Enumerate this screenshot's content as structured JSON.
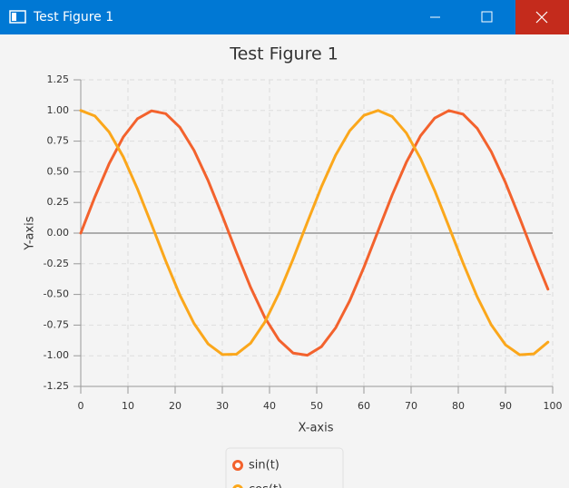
{
  "window": {
    "title": "Test Figure 1"
  },
  "chart_data": {
    "type": "line",
    "title": "Test Figure 1",
    "x_label": "X-axis",
    "y_label": "Y-axis",
    "x": [
      0,
      3,
      6,
      9,
      12,
      15,
      18,
      21,
      24,
      27,
      30,
      33,
      36,
      39,
      42,
      45,
      48,
      51,
      54,
      57,
      60,
      63,
      66,
      69,
      72,
      75,
      78,
      81,
      84,
      87,
      90,
      93,
      96,
      99
    ],
    "series": [
      {
        "name": "sin(t)",
        "color": "#f3622d",
        "values": [
          0,
          0.296,
          0.565,
          0.783,
          0.932,
          0.997,
          0.974,
          0.863,
          0.675,
          0.427,
          0.141,
          -0.158,
          -0.443,
          -0.688,
          -0.872,
          -0.978,
          -0.996,
          -0.926,
          -0.773,
          -0.551,
          -0.279,
          0.017,
          0.312,
          0.578,
          0.794,
          0.938,
          0.999,
          0.97,
          0.855,
          0.663,
          0.412,
          0.124,
          -0.174,
          -0.457
        ]
      },
      {
        "name": "cos(t)",
        "color": "#fba71b",
        "values": [
          1,
          0.955,
          0.825,
          0.622,
          0.362,
          0.071,
          -0.227,
          -0.505,
          -0.737,
          -0.904,
          -0.99,
          -0.987,
          -0.897,
          -0.726,
          -0.49,
          -0.211,
          0.087,
          0.378,
          0.635,
          0.835,
          0.96,
          1.0,
          0.95,
          0.816,
          0.608,
          0.347,
          0.054,
          -0.243,
          -0.519,
          -0.749,
          -0.911,
          -0.992,
          -0.985,
          -0.889
        ]
      }
    ],
    "xlim": [
      0,
      100
    ],
    "xticks": [
      0,
      10,
      20,
      30,
      40,
      50,
      60,
      70,
      80,
      90,
      100
    ],
    "ylim": [
      -1.25,
      1.25
    ],
    "yticks": [
      {
        "value": -1.25,
        "label": "-1.25"
      },
      {
        "value": -1,
        "label": "-1.00"
      },
      {
        "value": -0.75,
        "label": "-0.75"
      },
      {
        "value": -0.5,
        "label": "-0.50"
      },
      {
        "value": -0.25,
        "label": "-0.25"
      },
      {
        "value": 0,
        "label": "0.00"
      },
      {
        "value": 0.25,
        "label": "0.25"
      },
      {
        "value": 0.5,
        "label": "0.50"
      },
      {
        "value": 0.75,
        "label": "0.75"
      },
      {
        "value": 1,
        "label": "1.00"
      },
      {
        "value": 1.25,
        "label": "1.25"
      }
    ],
    "grid": true,
    "legend": "bottom"
  }
}
